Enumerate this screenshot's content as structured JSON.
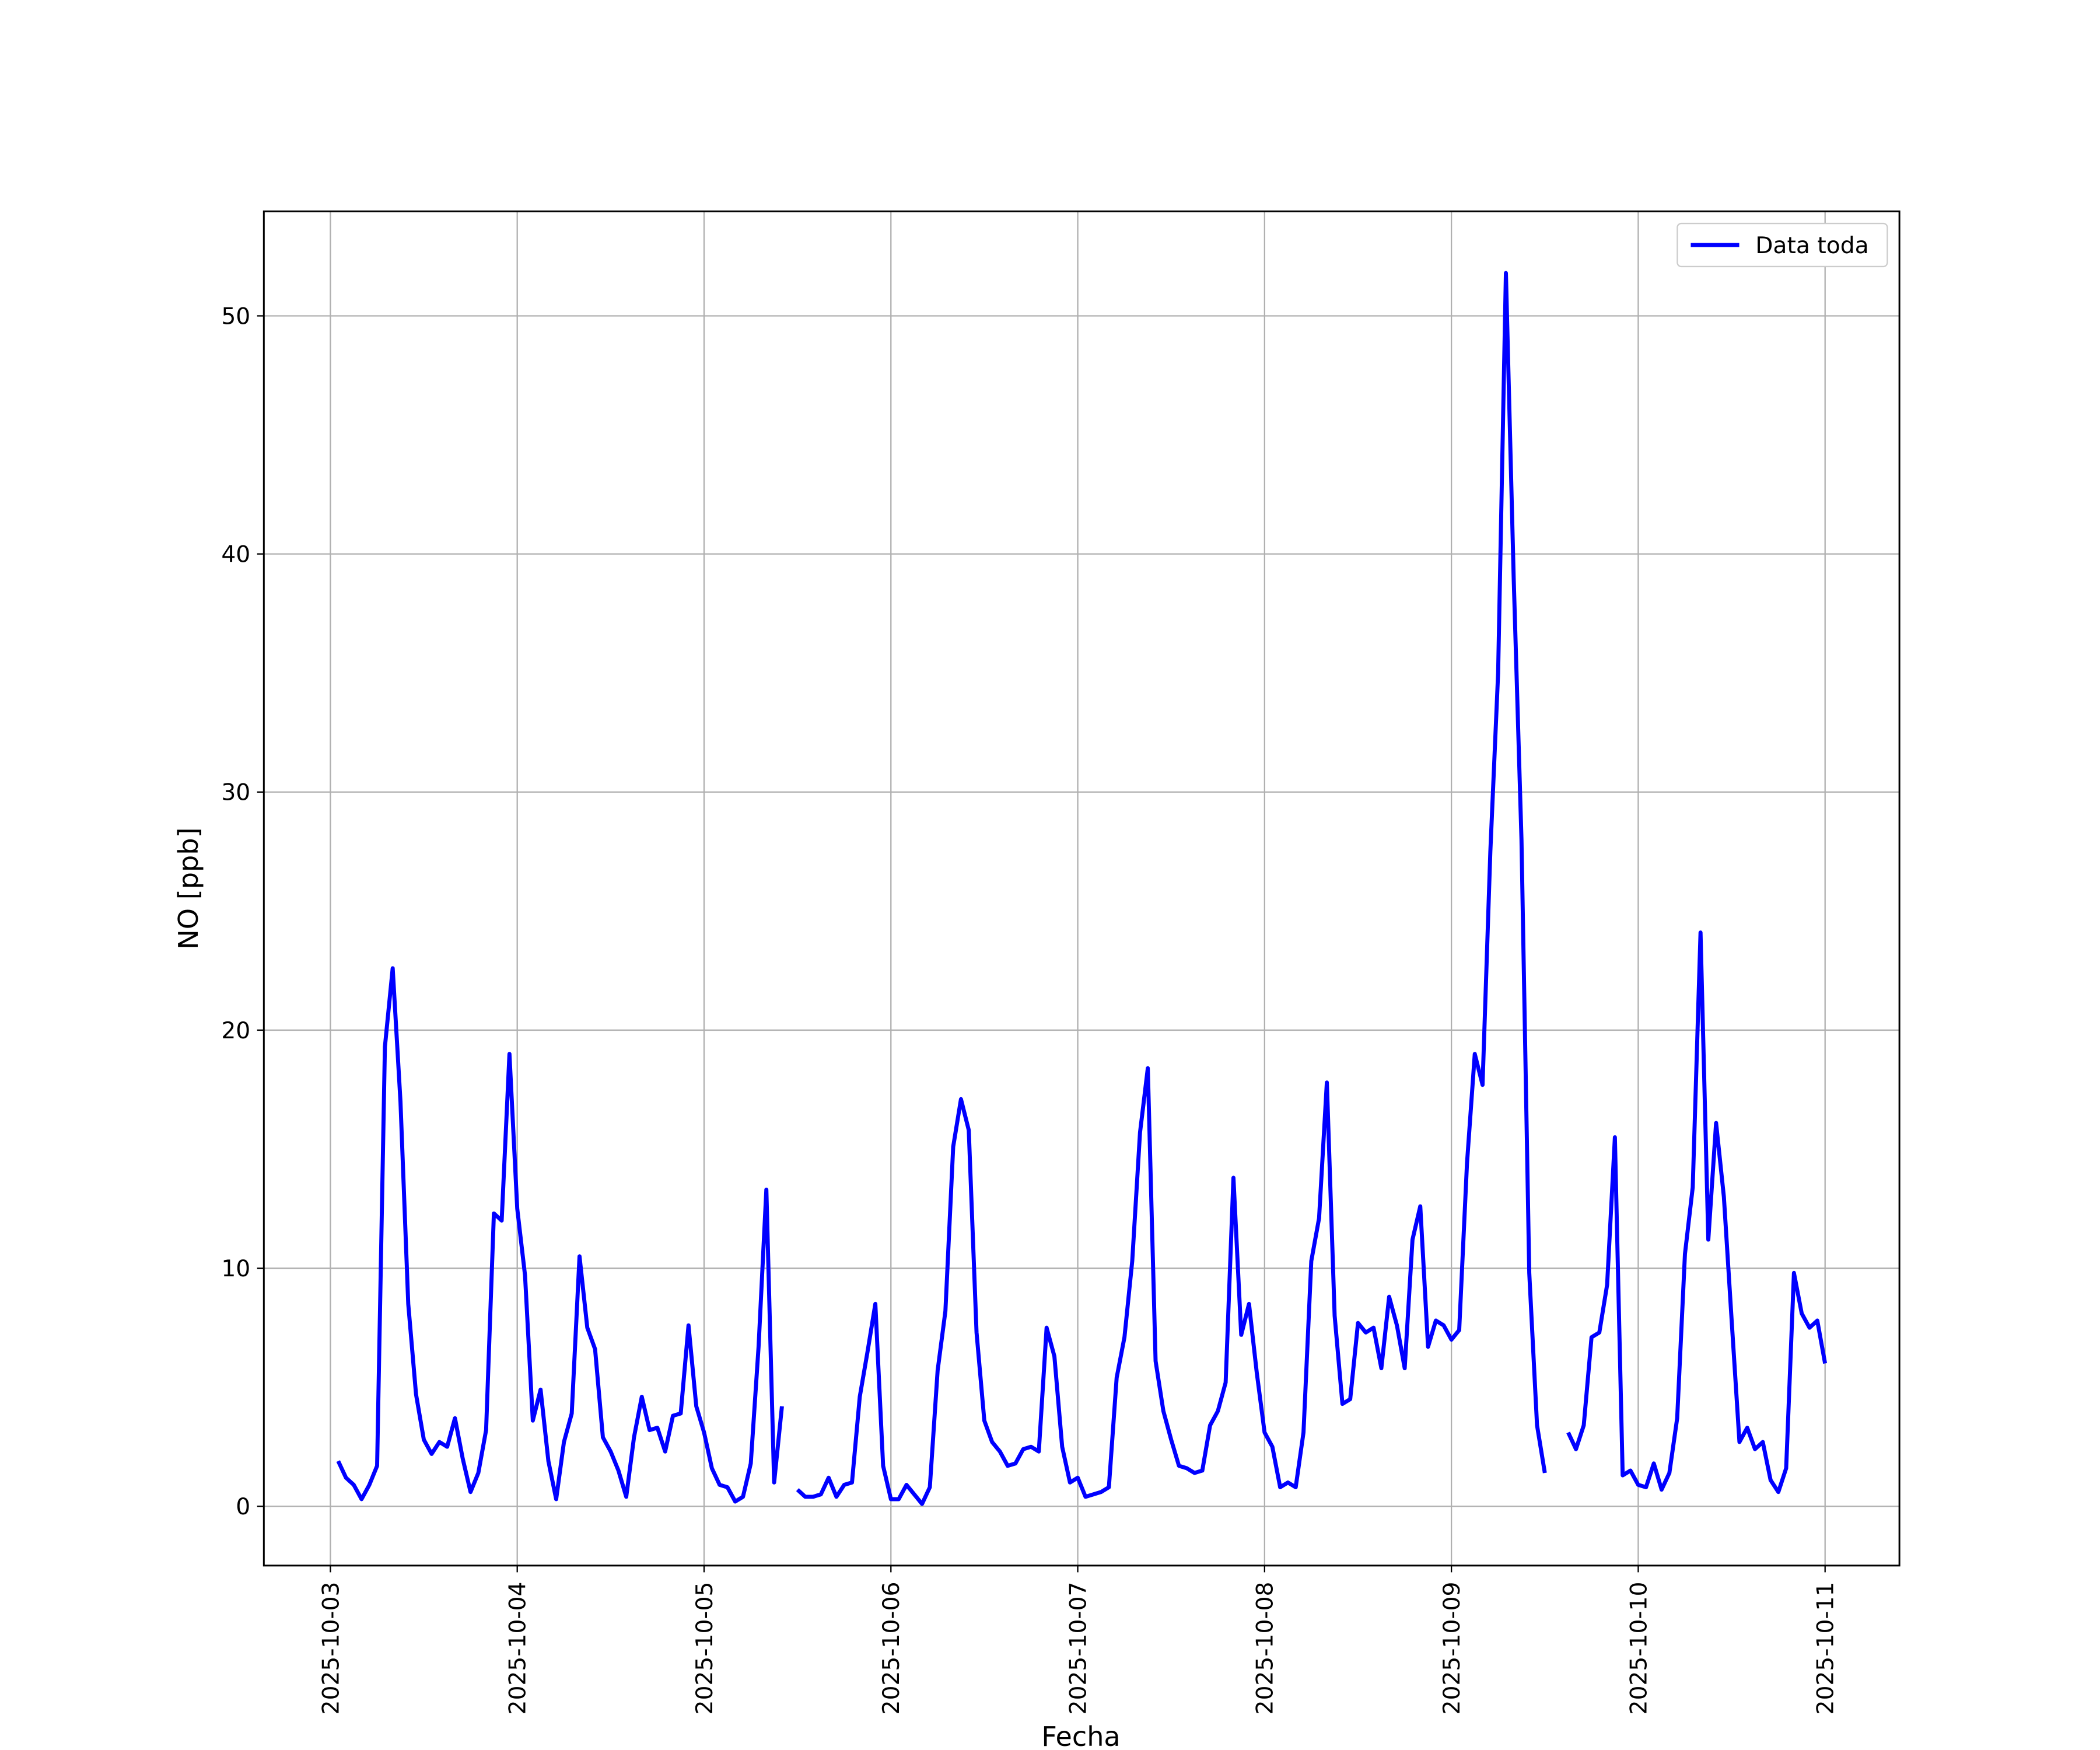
{
  "chart_data": {
    "type": "line",
    "xlabel": "Fecha",
    "ylabel": "NO [ppb]",
    "x": [
      "2025-10-03T01:00",
      "2025-10-03T02:00",
      "2025-10-03T03:00",
      "2025-10-03T04:00",
      "2025-10-03T05:00",
      "2025-10-03T06:00",
      "2025-10-03T07:00",
      "2025-10-03T08:00",
      "2025-10-03T09:00",
      "2025-10-03T10:00",
      "2025-10-03T11:00",
      "2025-10-03T12:00",
      "2025-10-03T13:00",
      "2025-10-03T14:00",
      "2025-10-03T15:00",
      "2025-10-03T16:00",
      "2025-10-03T17:00",
      "2025-10-03T18:00",
      "2025-10-03T19:00",
      "2025-10-03T20:00",
      "2025-10-03T21:00",
      "2025-10-03T22:00",
      "2025-10-03T23:00",
      "2025-10-04T00:00",
      "2025-10-04T01:00",
      "2025-10-04T02:00",
      "2025-10-04T03:00",
      "2025-10-04T04:00",
      "2025-10-04T05:00",
      "2025-10-04T06:00",
      "2025-10-04T07:00",
      "2025-10-04T08:00",
      "2025-10-04T09:00",
      "2025-10-04T10:00",
      "2025-10-04T11:00",
      "2025-10-04T12:00",
      "2025-10-04T13:00",
      "2025-10-04T14:00",
      "2025-10-04T15:00",
      "2025-10-04T16:00",
      "2025-10-04T17:00",
      "2025-10-04T18:00",
      "2025-10-04T19:00",
      "2025-10-04T20:00",
      "2025-10-04T21:00",
      "2025-10-04T22:00",
      "2025-10-04T23:00",
      "2025-10-05T00:00",
      "2025-10-05T01:00",
      "2025-10-05T02:00",
      "2025-10-05T03:00",
      "2025-10-05T04:00",
      "2025-10-05T05:00",
      "2025-10-05T06:00",
      "2025-10-05T07:00",
      "2025-10-05T08:00",
      "2025-10-05T09:00",
      "2025-10-05T10:00",
      "2025-10-05T11:00",
      "2025-10-05T12:00",
      "2025-10-05T13:00",
      "2025-10-05T14:00",
      "2025-10-05T15:00",
      "2025-10-05T16:00",
      "2025-10-05T17:00",
      "2025-10-05T18:00",
      "2025-10-05T19:00",
      "2025-10-05T20:00",
      "2025-10-05T21:00",
      "2025-10-05T22:00",
      "2025-10-05T23:00",
      "2025-10-06T00:00",
      "2025-10-06T01:00",
      "2025-10-06T02:00",
      "2025-10-06T03:00",
      "2025-10-06T04:00",
      "2025-10-06T05:00",
      "2025-10-06T06:00",
      "2025-10-06T07:00",
      "2025-10-06T08:00",
      "2025-10-06T09:00",
      "2025-10-06T10:00",
      "2025-10-06T11:00",
      "2025-10-06T12:00",
      "2025-10-06T13:00",
      "2025-10-06T14:00",
      "2025-10-06T15:00",
      "2025-10-06T16:00",
      "2025-10-06T17:00",
      "2025-10-06T18:00",
      "2025-10-06T19:00",
      "2025-10-06T20:00",
      "2025-10-06T21:00",
      "2025-10-06T22:00",
      "2025-10-06T23:00",
      "2025-10-07T00:00",
      "2025-10-07T01:00",
      "2025-10-07T02:00",
      "2025-10-07T03:00",
      "2025-10-07T04:00",
      "2025-10-07T05:00",
      "2025-10-07T06:00",
      "2025-10-07T07:00",
      "2025-10-07T08:00",
      "2025-10-07T09:00",
      "2025-10-07T10:00",
      "2025-10-07T11:00",
      "2025-10-07T12:00",
      "2025-10-07T13:00",
      "2025-10-07T14:00",
      "2025-10-07T15:00",
      "2025-10-07T16:00",
      "2025-10-07T17:00",
      "2025-10-07T18:00",
      "2025-10-07T19:00",
      "2025-10-07T20:00",
      "2025-10-07T21:00",
      "2025-10-07T22:00",
      "2025-10-07T23:00",
      "2025-10-08T00:00",
      "2025-10-08T01:00",
      "2025-10-08T02:00",
      "2025-10-08T03:00",
      "2025-10-08T04:00",
      "2025-10-08T05:00",
      "2025-10-08T06:00",
      "2025-10-08T07:00",
      "2025-10-08T08:00",
      "2025-10-08T09:00",
      "2025-10-08T10:00",
      "2025-10-08T11:00",
      "2025-10-08T12:00",
      "2025-10-08T13:00",
      "2025-10-08T14:00",
      "2025-10-08T15:00",
      "2025-10-08T16:00",
      "2025-10-08T17:00",
      "2025-10-08T18:00",
      "2025-10-08T19:00",
      "2025-10-08T20:00",
      "2025-10-08T21:00",
      "2025-10-08T22:00",
      "2025-10-08T23:00",
      "2025-10-09T00:00",
      "2025-10-09T01:00",
      "2025-10-09T02:00",
      "2025-10-09T03:00",
      "2025-10-09T04:00",
      "2025-10-09T05:00",
      "2025-10-09T06:00",
      "2025-10-09T07:00",
      "2025-10-09T08:00",
      "2025-10-09T09:00",
      "2025-10-09T10:00",
      "2025-10-09T11:00",
      "2025-10-09T12:00",
      "2025-10-09T13:00",
      "2025-10-09T14:00",
      "2025-10-09T15:00",
      "2025-10-09T16:00",
      "2025-10-09T17:00",
      "2025-10-09T18:00",
      "2025-10-09T19:00",
      "2025-10-09T20:00",
      "2025-10-09T21:00",
      "2025-10-09T22:00",
      "2025-10-09T23:00",
      "2025-10-10T00:00",
      "2025-10-10T01:00",
      "2025-10-10T02:00",
      "2025-10-10T03:00",
      "2025-10-10T04:00",
      "2025-10-10T05:00",
      "2025-10-10T06:00",
      "2025-10-10T07:00",
      "2025-10-10T08:00",
      "2025-10-10T09:00",
      "2025-10-10T10:00",
      "2025-10-10T11:00",
      "2025-10-10T12:00",
      "2025-10-10T13:00",
      "2025-10-10T14:00",
      "2025-10-10T15:00",
      "2025-10-10T16:00",
      "2025-10-10T17:00",
      "2025-10-10T18:00",
      "2025-10-10T19:00",
      "2025-10-10T20:00",
      "2025-10-10T21:00",
      "2025-10-10T22:00",
      "2025-10-10T23:00",
      "2025-10-11T00:00"
    ],
    "series": [
      {
        "name": "Data toda",
        "color": "#0000ff",
        "values": [
          1.9,
          1.2,
          0.9,
          0.3,
          0.9,
          1.7,
          19.3,
          22.6,
          17.0,
          8.5,
          4.7,
          2.8,
          2.2,
          2.7,
          2.5,
          3.7,
          2.0,
          0.6,
          1.4,
          3.2,
          12.3,
          12.0,
          19.0,
          12.5,
          9.7,
          3.6,
          4.9,
          1.9,
          0.3,
          2.7,
          3.9,
          10.5,
          7.5,
          6.6,
          2.9,
          2.3,
          1.5,
          0.4,
          2.9,
          4.6,
          3.2,
          3.3,
          2.3,
          3.8,
          3.9,
          7.6,
          4.2,
          3.1,
          1.6,
          0.9,
          0.8,
          0.2,
          0.4,
          1.8,
          6.7,
          13.3,
          1.0,
          4.2,
          null,
          0.7,
          0.4,
          0.4,
          0.5,
          1.2,
          0.4,
          0.9,
          1.0,
          4.6,
          6.5,
          8.5,
          1.7,
          0.3,
          0.3,
          0.9,
          0.5,
          0.1,
          0.8,
          5.7,
          8.2,
          15.1,
          17.1,
          15.8,
          7.3,
          3.6,
          2.7,
          2.3,
          1.7,
          1.8,
          2.4,
          2.5,
          2.3,
          7.5,
          6.3,
          2.5,
          1.0,
          1.2,
          0.4,
          0.5,
          0.6,
          0.8,
          5.4,
          7.1,
          10.3,
          15.7,
          18.4,
          6.1,
          4.0,
          2.8,
          1.7,
          1.6,
          1.4,
          1.5,
          3.4,
          4.0,
          5.2,
          13.8,
          7.2,
          8.5,
          5.6,
          3.1,
          2.5,
          0.8,
          1.0,
          0.8,
          3.1,
          10.3,
          12.1,
          17.8,
          8.0,
          4.3,
          4.5,
          7.7,
          7.3,
          7.5,
          5.8,
          8.8,
          7.6,
          5.8,
          11.2,
          12.6,
          6.7,
          7.8,
          7.6,
          7.0,
          7.4,
          14.4,
          19.0,
          17.7,
          27.5,
          35.0,
          51.8,
          39.0,
          28.0,
          9.8,
          3.4,
          1.4,
          null,
          null,
          3.1,
          2.4,
          3.4,
          7.1,
          7.3,
          9.3,
          15.5,
          1.3,
          1.5,
          0.9,
          0.8,
          1.8,
          0.7,
          1.4,
          3.7,
          10.6,
          13.4,
          24.1,
          11.2,
          16.1,
          13.0,
          7.8,
          2.7,
          3.3,
          2.4,
          2.7,
          1.1,
          0.6,
          1.6,
          9.8,
          8.1,
          7.5,
          7.8,
          6.0
        ]
      }
    ],
    "xlim": [
      "2025-10-02T15:27",
      "2025-10-11T09:33"
    ],
    "xticks": [
      "2025-10-03",
      "2025-10-04",
      "2025-10-05",
      "2025-10-06",
      "2025-10-07",
      "2025-10-08",
      "2025-10-09",
      "2025-10-10",
      "2025-10-11"
    ],
    "ylim": [
      -2.49,
      54.39
    ],
    "yticks": [
      0,
      10,
      20,
      30,
      40,
      50
    ],
    "grid": true,
    "legend": "upper right"
  }
}
